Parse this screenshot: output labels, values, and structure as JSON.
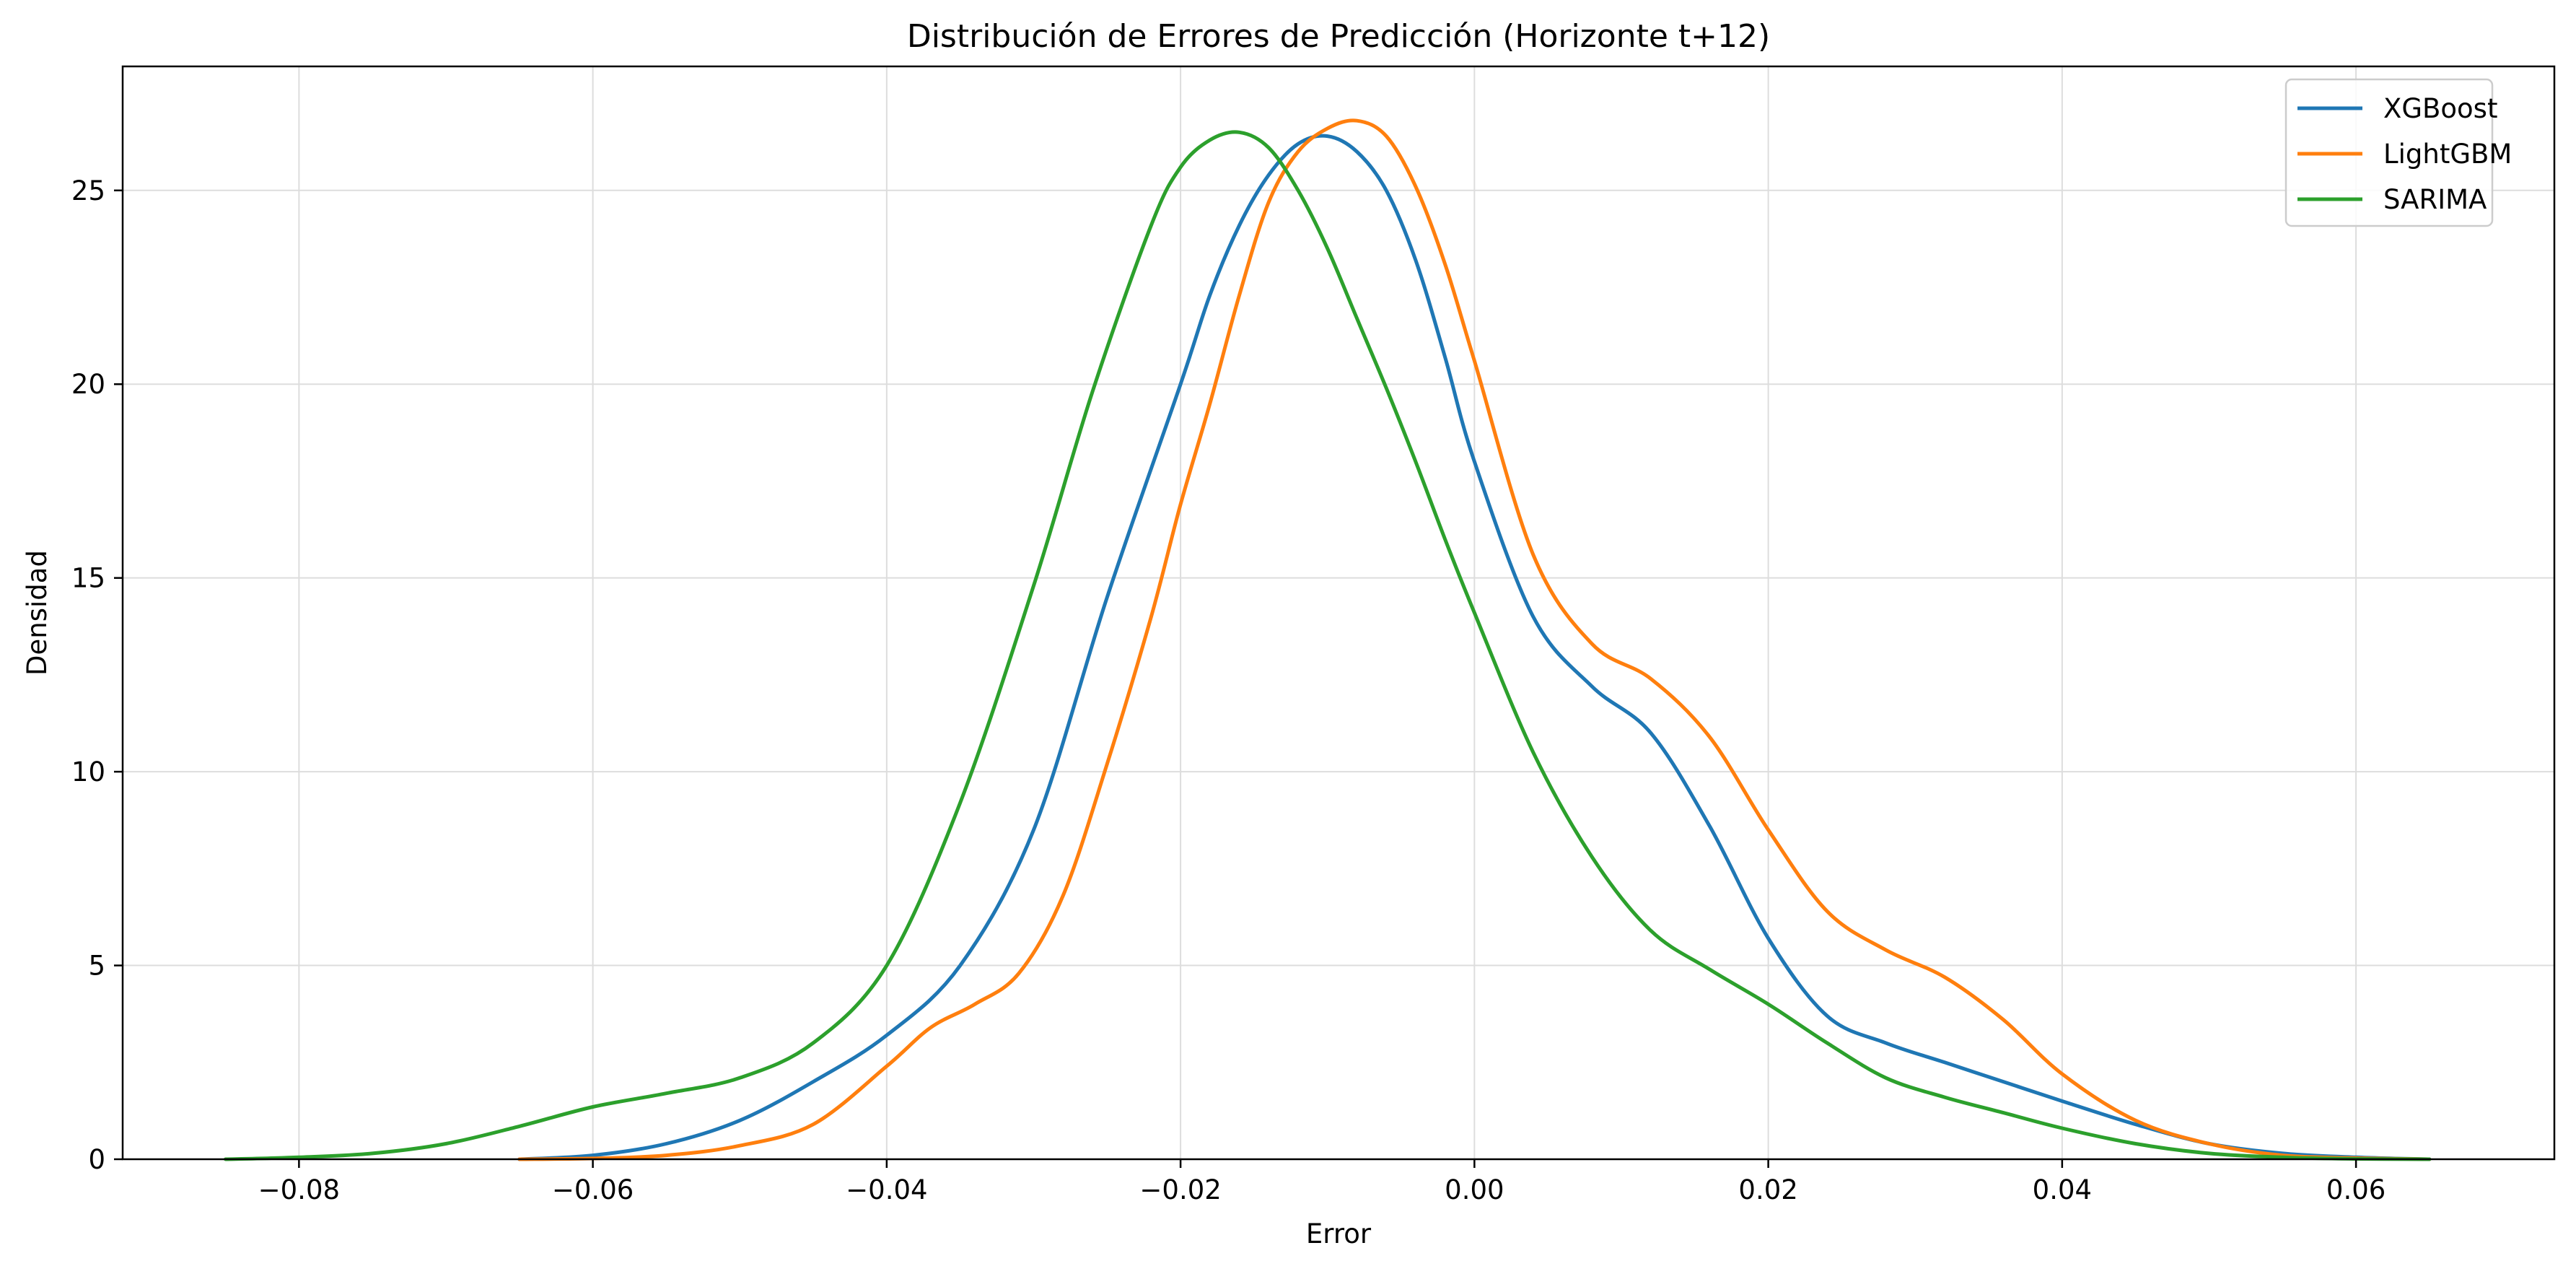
{
  "chart_data": {
    "type": "line",
    "title": "Distribución de Errores de Predicción (Horizonte t+12)",
    "xlabel": "Error",
    "ylabel": "Densidad",
    "xlim": [
      -0.092,
      0.0735
    ],
    "ylim": [
      0,
      28.2
    ],
    "xticks": [
      -0.08,
      -0.06,
      -0.04,
      -0.02,
      0.0,
      0.02,
      0.04,
      0.06
    ],
    "xtick_labels": [
      "−0.08",
      "−0.06",
      "−0.04",
      "−0.02",
      "0.00",
      "0.02",
      "0.04",
      "0.06"
    ],
    "yticks": [
      0,
      5,
      10,
      15,
      20,
      25
    ],
    "ytick_labels": [
      "0",
      "5",
      "10",
      "15",
      "20",
      "25"
    ],
    "grid": true,
    "legend_position": "top-right",
    "series": [
      {
        "name": "XGBoost",
        "color": "#1f77b4",
        "x": [
          -0.065,
          -0.06,
          -0.055,
          -0.05,
          -0.045,
          -0.04,
          -0.035,
          -0.03,
          -0.025,
          -0.02,
          -0.018,
          -0.016,
          -0.014,
          -0.012,
          -0.01,
          -0.008,
          -0.006,
          -0.004,
          -0.002,
          0.0,
          0.004,
          0.008,
          0.012,
          0.016,
          0.02,
          0.024,
          0.028,
          0.032,
          0.036,
          0.04,
          0.045,
          0.05,
          0.055,
          0.06,
          0.065
        ],
        "y": [
          0.0,
          0.1,
          0.4,
          1.0,
          2.0,
          3.2,
          5.0,
          8.5,
          14.5,
          20.0,
          22.3,
          24.1,
          25.4,
          26.2,
          26.4,
          26.0,
          25.0,
          23.2,
          20.7,
          18.0,
          14.0,
          12.2,
          11.0,
          8.6,
          5.7,
          3.7,
          3.0,
          2.5,
          2.0,
          1.5,
          0.9,
          0.4,
          0.15,
          0.05,
          0.0
        ]
      },
      {
        "name": "LightGBM",
        "color": "#ff7f0e",
        "x": [
          -0.065,
          -0.06,
          -0.055,
          -0.05,
          -0.045,
          -0.04,
          -0.037,
          -0.034,
          -0.031,
          -0.028,
          -0.025,
          -0.022,
          -0.02,
          -0.018,
          -0.016,
          -0.014,
          -0.012,
          -0.01,
          -0.008,
          -0.006,
          -0.004,
          -0.002,
          0.0,
          0.004,
          0.008,
          0.012,
          0.016,
          0.02,
          0.024,
          0.028,
          0.032,
          0.036,
          0.04,
          0.045,
          0.05,
          0.055,
          0.06,
          0.065
        ],
        "y": [
          0.0,
          0.02,
          0.1,
          0.35,
          0.9,
          2.4,
          3.4,
          4.0,
          4.8,
          6.8,
          10.2,
          14.0,
          16.9,
          19.5,
          22.3,
          24.7,
          26.0,
          26.6,
          26.8,
          26.4,
          25.1,
          23.1,
          20.6,
          15.6,
          13.3,
          12.4,
          10.9,
          8.5,
          6.4,
          5.4,
          4.7,
          3.6,
          2.2,
          1.0,
          0.4,
          0.1,
          0.03,
          0.0
        ]
      },
      {
        "name": "SARIMA",
        "color": "#2ca02c",
        "x": [
          -0.085,
          -0.08,
          -0.075,
          -0.07,
          -0.065,
          -0.06,
          -0.055,
          -0.05,
          -0.045,
          -0.04,
          -0.035,
          -0.03,
          -0.026,
          -0.022,
          -0.02,
          -0.018,
          -0.016,
          -0.014,
          -0.012,
          -0.01,
          -0.008,
          -0.006,
          -0.004,
          -0.002,
          0.0,
          0.004,
          0.008,
          0.012,
          0.016,
          0.02,
          0.024,
          0.028,
          0.032,
          0.036,
          0.04,
          0.045,
          0.05,
          0.055,
          0.06,
          0.065
        ],
        "y": [
          0.0,
          0.05,
          0.15,
          0.4,
          0.85,
          1.35,
          1.7,
          2.1,
          3.0,
          5.0,
          9.2,
          14.8,
          19.8,
          24.1,
          25.6,
          26.3,
          26.5,
          26.1,
          25.0,
          23.5,
          21.7,
          19.9,
          18.0,
          16.0,
          14.1,
          10.5,
          7.8,
          5.9,
          4.9,
          4.0,
          3.0,
          2.1,
          1.6,
          1.2,
          0.8,
          0.4,
          0.15,
          0.05,
          0.01,
          0.0
        ]
      }
    ]
  }
}
